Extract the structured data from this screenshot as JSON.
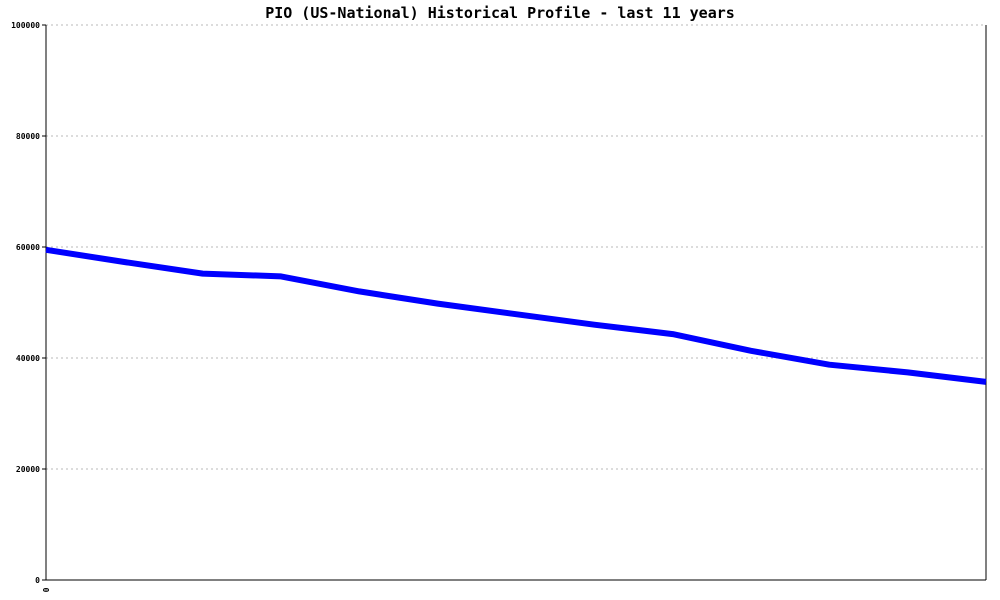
{
  "chart_data": {
    "type": "line",
    "title": "PIO (US-National) Historical Profile - last 11 years",
    "xlabel": "",
    "ylabel": "",
    "ylim": [
      0,
      100000
    ],
    "yticks": [
      0,
      20000,
      40000,
      60000,
      80000,
      100000
    ],
    "ytick_labels": [
      "0",
      "20000",
      "40000",
      "60000",
      "80000",
      "100000"
    ],
    "xtick_labels": [
      "0"
    ],
    "grid": true,
    "line_color": "#0000ff",
    "series": [
      {
        "values": [
          59500,
          57300,
          55200,
          54700,
          52000,
          49800,
          47900,
          46000,
          44300,
          41300,
          38800,
          37400,
          35700
        ]
      }
    ]
  }
}
